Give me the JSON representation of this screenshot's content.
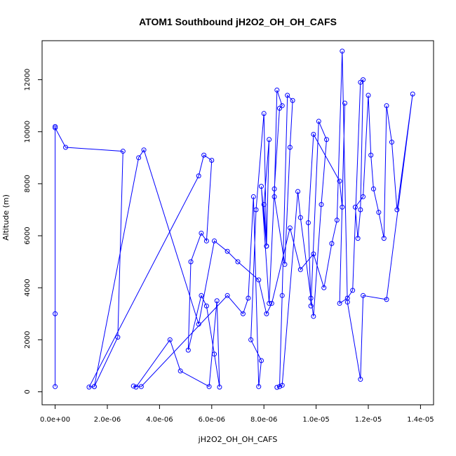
{
  "chart_data": {
    "type": "line",
    "title": "ATOM1 Southbound jH2O2_OH_OH_CAFS",
    "xlabel": "jH2O2_OH_OH_CAFS",
    "ylabel": "Altitude (m)",
    "xlim": [
      -5e-07,
      1.45e-05
    ],
    "ylim": [
      -500,
      13500
    ],
    "xticks": [
      0.0,
      2e-06,
      4e-06,
      6e-06,
      8e-06,
      1e-05,
      1.2e-05,
      1.4e-05
    ],
    "xtick_labels": [
      "0.0e+00",
      "2.0e-06",
      "4.0e-06",
      "6.0e-06",
      "8.0e-06",
      "1.0e-05",
      "1.2e-05",
      "1.4e-05"
    ],
    "yticks": [
      0,
      2000,
      4000,
      6000,
      8000,
      10000,
      12000
    ],
    "ytick_labels": [
      "0",
      "2000",
      "4000",
      "6000",
      "8000",
      "10000",
      "12000"
    ],
    "color": "#0000ff",
    "marker": "open-circle",
    "series": [
      {
        "x": [
          0.0,
          0.0,
          0.0,
          0.0,
          4e-07,
          2.6e-06,
          2.4e-06,
          1.5e-06,
          1.3e-06,
          5.5e-06,
          5.7e-06,
          6e-06,
          5.8e-06,
          5.6e-06,
          5.2e-06,
          5.1e-06,
          5.6e-06,
          5.8e-06,
          6.1e-06,
          6.3e-06,
          6.2e-06,
          5.9e-06,
          4.8e-06,
          4.4e-06,
          3.1e-06,
          3e-06,
          3.3e-06,
          6.6e-06,
          7.2e-06,
          7.4e-06,
          7.6e-06,
          7.8e-06,
          7.9e-06,
          7.5e-06,
          7.7e-06,
          8e-06,
          8.1e-06,
          8.2e-06,
          8e-06,
          8.1e-06,
          7.9e-06,
          8.2e-06,
          8.4e-06,
          8.6e-06,
          8.7e-06,
          8.5e-06,
          8.4e-06,
          8.8e-06,
          9e-06,
          9.1e-06,
          8.9e-06,
          8.7e-06,
          8.6e-06,
          8.5e-06,
          8.7e-06,
          9.3e-06,
          9.4e-06,
          9.8e-06,
          9.9e-06,
          1.02e-05,
          1.04e-05,
          1.01e-05,
          9.8e-06,
          9.7e-06,
          9.9e-06,
          1.09e-05,
          1.1e-05,
          1.11e-05,
          1.09e-05,
          1.12e-05,
          1.14e-05,
          1.17e-05,
          1.18e-05,
          1.17e-05,
          1.16e-05,
          1.15e-05,
          1.18e-05,
          1.2e-05,
          1.21e-05,
          1.22e-05,
          1.24e-05,
          1.26e-05,
          1.27e-05,
          1.29e-05,
          1.31e-05,
          1.37e-05,
          1.27e-05,
          1.18e-05,
          1.17e-05,
          1.12e-05,
          1.1e-05,
          1.08e-05,
          1.06e-05,
          1.03e-05,
          9.9e-06,
          9.4e-06,
          9e-06,
          8.3e-06,
          8.1e-06,
          7.8e-06,
          7e-06,
          6.6e-06,
          6.1e-06,
          5.5e-06,
          3.4e-06,
          3.2e-06,
          1.5e-06
        ],
        "y": [
          200,
          3000,
          10200,
          10150,
          9400,
          9250,
          2100,
          200,
          180,
          8300,
          9100,
          8900,
          5800,
          6100,
          5000,
          1600,
          3700,
          3300,
          1450,
          180,
          3500,
          200,
          800,
          2000,
          180,
          220,
          200,
          3700,
          3000,
          3600,
          7500,
          200,
          1200,
          2000,
          7000,
          10700,
          5600,
          9700,
          7200,
          5600,
          7900,
          3400,
          7800,
          10900,
          11000,
          11600,
          7500,
          4900,
          9400,
          11200,
          11400,
          3700,
          200,
          170,
          250,
          7700,
          6700,
          3600,
          2900,
          7200,
          9700,
          10400,
          3300,
          6500,
          9900,
          8100,
          7100,
          11100,
          3400,
          3600,
          3900,
          11900,
          12000,
          7000,
          5900,
          7100,
          7500,
          11400,
          9100,
          7800,
          6900,
          5900,
          11000,
          9600,
          7000,
          11450,
          3550,
          3700,
          480,
          3450,
          13100,
          6600,
          5700,
          4000,
          5300,
          4700,
          6300,
          3400,
          3000,
          4300,
          5000,
          5400,
          5800,
          2600,
          9300,
          9000,
          200
        ]
      }
    ]
  }
}
